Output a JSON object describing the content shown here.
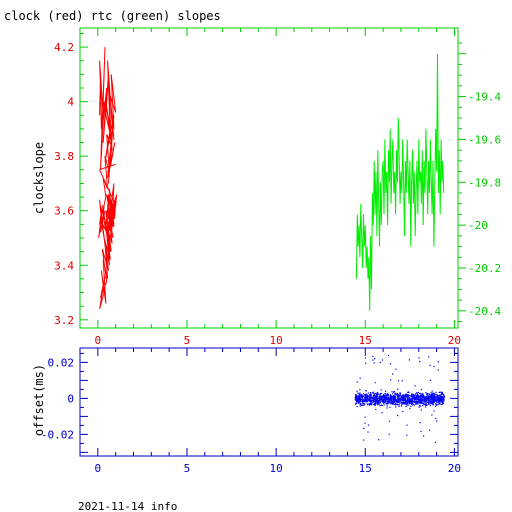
{
  "title": "clock (red) rtc (green) slopes",
  "footer": "2021-11-14 info",
  "colors": {
    "clock": "#ff0000",
    "rtc": "#00ee00",
    "offset": "#0000ff",
    "frame_top": "#00cc00",
    "frame_bottom": "#0000cc",
    "axis_text_left": "#dd0000",
    "axis_text_right": "#00cc00",
    "axis_text_bottom": "#0000cc"
  },
  "chart_data": [
    {
      "type": "line",
      "ylabel": "clockslope",
      "ylabel_right": "",
      "xlim": [
        -1,
        20.2
      ],
      "ylim_left": [
        3.17,
        4.27
      ],
      "ylim_right": [
        -20.48,
        -19.08
      ],
      "x_ticks": [
        "0",
        "5",
        "10",
        "15",
        "20"
      ],
      "y_ticks_left": [
        "3.2",
        "3.4",
        "3.6",
        "3.8",
        "4",
        "4.2"
      ],
      "y_ticks_right": [
        "-20.4",
        "-20.2",
        "-20",
        "-19.8",
        "-19.6",
        "-19.4"
      ],
      "series": [
        {
          "name": "clock",
          "axis": "left",
          "x": [
            0.1,
            0.15,
            0.2,
            0.15,
            0.25,
            0.1,
            0.3,
            0.2,
            0.35,
            0.15,
            0.4,
            0.25,
            0.5,
            0.3,
            0.6,
            0.45,
            0.7,
            0.55,
            0.8,
            0.6,
            0.9,
            0.7,
            1.0,
            0.75,
            0.9,
            0.6,
            0.8,
            0.5,
            0.7,
            0.4,
            0.9,
            0.55,
            0.95,
            0.7,
            0.85,
            0.6,
            0.75,
            0.5,
            0.65,
            0.4,
            0.55,
            0.3,
            0.45,
            0.2,
            0.35,
            0.25,
            0.4,
            0.15,
            0.3,
            0.1,
            0.25,
            0.05,
            0.2,
            0.1,
            0.3,
            0.15,
            0.4,
            0.2,
            0.5,
            0.3,
            0.6,
            0.35,
            0.7,
            0.45,
            0.8,
            0.5,
            0.85,
            0.6,
            0.95,
            0.65,
            1.0,
            0.7,
            0.9,
            0.55,
            0.8,
            0.45,
            0.7,
            0.35,
            0.6,
            0.25,
            0.5,
            0.15,
            0.4,
            0.1,
            0.35,
            0.2,
            0.45,
            0.3,
            0.55,
            0.4,
            0.65,
            0.5,
            0.75,
            0.55,
            0.85,
            0.6,
            0.9,
            0.7,
            0.95,
            0.75,
            0.9,
            0.65,
            0.8,
            0.55,
            0.7,
            0.45,
            0.6,
            0.5,
            0.65,
            0.55,
            0.6,
            0.7,
            0.65,
            0.75,
            0.8,
            0.9,
            0.85,
            0.95,
            1.0,
            0.95,
            1.05,
            1.0,
            0.1,
            0.5,
            1.0
          ],
          "values": [
            3.95,
            4.1,
            3.9,
            4.05,
            3.85,
            4.15,
            3.95,
            3.8,
            4.0,
            3.75,
            4.2,
            3.9,
            4.05,
            3.85,
            4.1,
            3.95,
            3.88,
            4.15,
            3.92,
            4.08,
            3.86,
            4.02,
            3.96,
            4.1,
            3.9,
            4.05,
            3.82,
            3.98,
            3.9,
            3.78,
            3.95,
            3.72,
            3.85,
            3.76,
            3.92,
            3.7,
            3.84,
            3.88,
            3.74,
            3.8,
            3.68,
            3.72,
            3.65,
            3.58,
            3.62,
            3.55,
            3.6,
            3.52,
            3.58,
            3.55,
            3.62,
            3.5,
            3.57,
            3.64,
            3.53,
            3.6,
            3.48,
            3.56,
            3.52,
            3.6,
            3.5,
            3.56,
            3.45,
            3.6,
            3.54,
            3.66,
            3.58,
            3.52,
            3.6,
            3.55,
            3.65,
            3.5,
            3.58,
            3.62,
            3.48,
            3.55,
            3.42,
            3.5,
            3.38,
            3.46,
            3.34,
            3.28,
            3.36,
            3.24,
            3.3,
            3.38,
            3.26,
            3.42,
            3.35,
            3.48,
            3.4,
            3.52,
            3.45,
            3.56,
            3.5,
            3.6,
            3.54,
            3.62,
            3.57,
            3.64,
            3.55,
            3.6,
            3.58,
            3.52,
            3.6,
            3.55,
            3.62,
            3.58,
            3.65,
            3.6,
            3.66,
            3.62,
            3.68,
            3.6,
            3.65,
            3.7,
            3.62,
            3.58,
            3.64,
            3.6,
            3.66,
            3.62,
            3.75,
            3.76,
            3.77
          ]
        },
        {
          "name": "rtc",
          "axis": "right",
          "x": [
            14.5,
            14.55,
            14.6,
            14.65,
            14.7,
            14.75,
            14.8,
            14.85,
            14.9,
            14.95,
            15.0,
            15.05,
            15.1,
            15.15,
            15.2,
            15.25,
            15.3,
            15.35,
            15.4,
            15.45,
            15.5,
            15.55,
            15.6,
            15.65,
            15.7,
            15.75,
            15.8,
            15.85,
            15.9,
            15.95,
            16.0,
            16.05,
            16.1,
            16.15,
            16.2,
            16.25,
            16.3,
            16.35,
            16.4,
            16.45,
            16.5,
            16.55,
            16.6,
            16.65,
            16.7,
            16.75,
            16.8,
            16.85,
            16.9,
            16.95,
            17.0,
            17.05,
            17.1,
            17.15,
            17.2,
            17.25,
            17.3,
            17.35,
            17.4,
            17.45,
            17.5,
            17.55,
            17.6,
            17.65,
            17.7,
            17.75,
            17.8,
            17.85,
            17.9,
            17.95,
            18.0,
            18.05,
            18.1,
            18.15,
            18.2,
            18.25,
            18.3,
            18.35,
            18.4,
            18.45,
            18.5,
            18.55,
            18.6,
            18.65,
            18.7,
            18.75,
            18.8,
            18.85,
            18.9,
            18.95,
            19.0,
            19.05,
            19.1,
            19.15,
            19.2,
            19.25,
            19.3,
            19.35,
            19.4
          ],
          "values": [
            -20.25,
            -19.95,
            -20.1,
            -20.0,
            -20.15,
            -19.9,
            -20.05,
            -20.2,
            -19.95,
            -20.1,
            -20.0,
            -20.2,
            -20.1,
            -20.25,
            -20.15,
            -20.4,
            -20.05,
            -20.3,
            -19.85,
            -20.0,
            -19.7,
            -19.95,
            -19.75,
            -20.05,
            -19.65,
            -19.9,
            -20.1,
            -19.8,
            -20.0,
            -19.75,
            -19.7,
            -19.95,
            -19.6,
            -19.85,
            -19.75,
            -20.0,
            -19.65,
            -19.8,
            -19.55,
            -19.9,
            -19.7,
            -19.6,
            -19.85,
            -19.75,
            -19.95,
            -19.65,
            -19.8,
            -19.5,
            -19.7,
            -19.9,
            -19.75,
            -19.85,
            -19.6,
            -19.8,
            -20.05,
            -19.7,
            -19.85,
            -19.6,
            -19.75,
            -19.9,
            -19.7,
            -20.1,
            -19.8,
            -19.65,
            -19.9,
            -19.75,
            -20.05,
            -19.85,
            -19.7,
            -19.95,
            -19.6,
            -19.8,
            -19.75,
            -19.9,
            -19.65,
            -20.0,
            -19.7,
            -19.85,
            -19.55,
            -19.75,
            -19.95,
            -19.7,
            -19.85,
            -19.6,
            -19.8,
            -19.95,
            -19.7,
            -20.1,
            -19.8,
            -19.55,
            -19.75,
            -19.2,
            -19.85,
            -19.65,
            -19.95,
            -19.6,
            -19.8,
            -19.7,
            -19.85
          ]
        }
      ]
    },
    {
      "type": "scatter",
      "ylabel": "offset(ms)",
      "xlim": [
        -1,
        20.2
      ],
      "ylim": [
        -0.032,
        0.028
      ],
      "x_ticks": [
        "0",
        "5",
        "10",
        "15",
        "20"
      ],
      "y_ticks": [
        "-0.02",
        "0",
        "0.02"
      ],
      "series": [
        {
          "name": "offset",
          "x_range": [
            14.4,
            19.4
          ],
          "center": 0.0,
          "spread": 0.006
        }
      ]
    }
  ]
}
